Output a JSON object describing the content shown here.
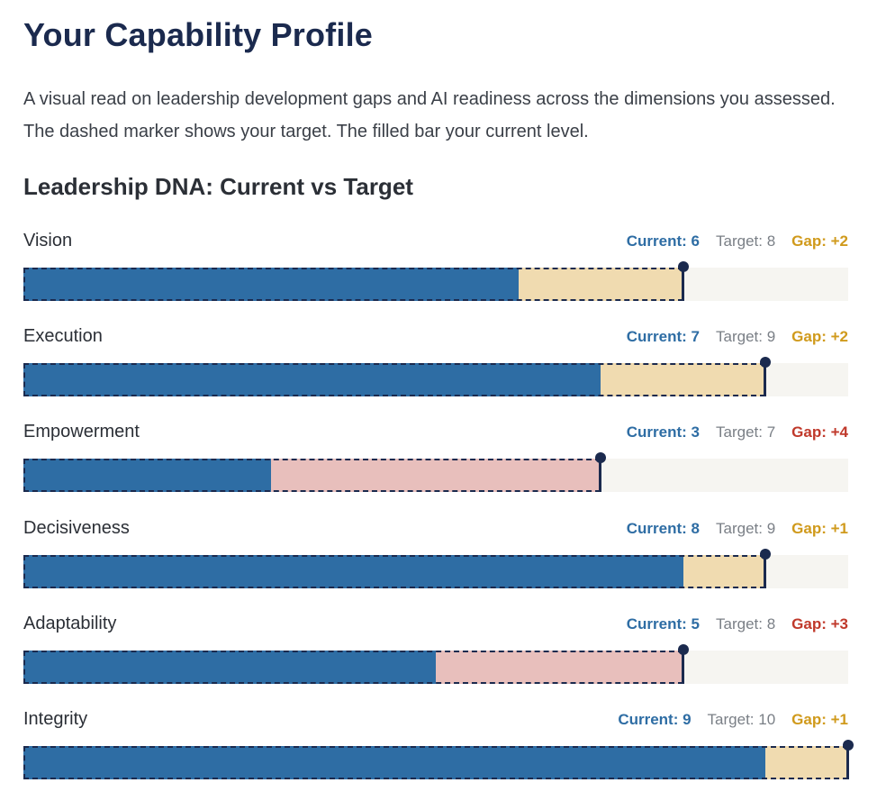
{
  "page": {
    "title": "Your Capability Profile",
    "intro": "A visual read on leadership development gaps and AI readiness across the dimensions you assessed. The dashed marker shows your target. The filled bar your current level."
  },
  "chart_data": {
    "type": "bar",
    "title": "Leadership DNA: Current vs Target",
    "scale_max": 10,
    "current_prefix": "Current: ",
    "target_prefix": "Target: ",
    "gap_prefix": "Gap: +",
    "colors": {
      "current": "#2e6da4",
      "gap_small": "#f0dbb0",
      "gap_large": "#e8bfbc",
      "target_marker": "#1b2a4e",
      "track": "#f6f5f1"
    },
    "rows": [
      {
        "label": "Vision",
        "current": 6,
        "target": 8,
        "gap": 2
      },
      {
        "label": "Execution",
        "current": 7,
        "target": 9,
        "gap": 2
      },
      {
        "label": "Empowerment",
        "current": 3,
        "target": 7,
        "gap": 4
      },
      {
        "label": "Decisiveness",
        "current": 8,
        "target": 9,
        "gap": 1
      },
      {
        "label": "Adaptability",
        "current": 5,
        "target": 8,
        "gap": 3
      },
      {
        "label": "Integrity",
        "current": 9,
        "target": 10,
        "gap": 1
      }
    ]
  }
}
